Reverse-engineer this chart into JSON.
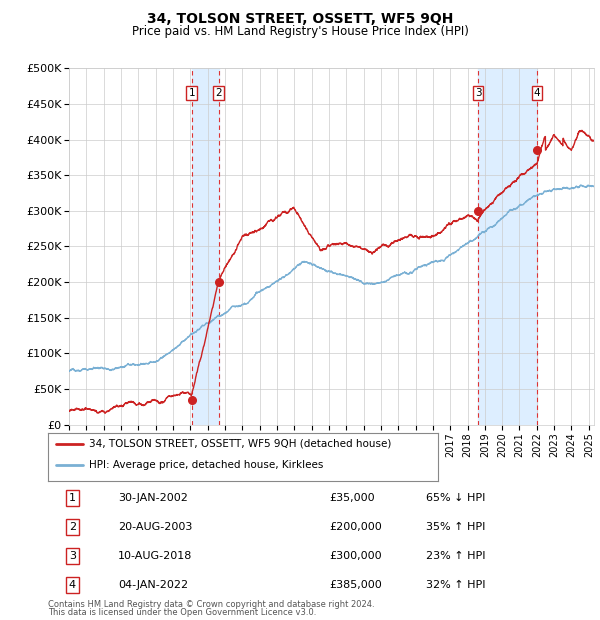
{
  "title": "34, TOLSON STREET, OSSETT, WF5 9QH",
  "subtitle": "Price paid vs. HM Land Registry's House Price Index (HPI)",
  "ylim": [
    0,
    500000
  ],
  "yticks": [
    0,
    50000,
    100000,
    150000,
    200000,
    250000,
    300000,
    350000,
    400000,
    450000,
    500000
  ],
  "ytick_labels": [
    "£0",
    "£50K",
    "£100K",
    "£150K",
    "£200K",
    "£250K",
    "£300K",
    "£350K",
    "£400K",
    "£450K",
    "£500K"
  ],
  "hpi_color": "#7ab0d4",
  "price_color": "#cc2222",
  "marker_color": "#cc2222",
  "vline_color": "#dd3333",
  "shade_color": "#ddeeff",
  "grid_color": "#cccccc",
  "background_color": "#ffffff",
  "xlim_start": 1995,
  "xlim_end": 2025.3,
  "transactions": [
    {
      "label": "1",
      "date_x": 2002.08,
      "price": 35000,
      "date_str": "30-JAN-2002",
      "pct": "65% ↓ HPI"
    },
    {
      "label": "2",
      "date_x": 2003.64,
      "price": 200000,
      "date_str": "20-AUG-2003",
      "pct": "35% ↑ HPI"
    },
    {
      "label": "3",
      "date_x": 2018.61,
      "price": 300000,
      "date_str": "10-AUG-2018",
      "pct": "23% ↑ HPI"
    },
    {
      "label": "4",
      "date_x": 2022.01,
      "price": 385000,
      "date_str": "04-JAN-2022",
      "pct": "32% ↑ HPI"
    }
  ],
  "legend_entries": [
    {
      "label": "34, TOLSON STREET, OSSETT, WF5 9QH (detached house)",
      "color": "#cc2222"
    },
    {
      "label": "HPI: Average price, detached house, Kirklees",
      "color": "#7ab0d4"
    }
  ],
  "footnote1": "Contains HM Land Registry data © Crown copyright and database right 2024.",
  "footnote2": "This data is licensed under the Open Government Licence v3.0."
}
